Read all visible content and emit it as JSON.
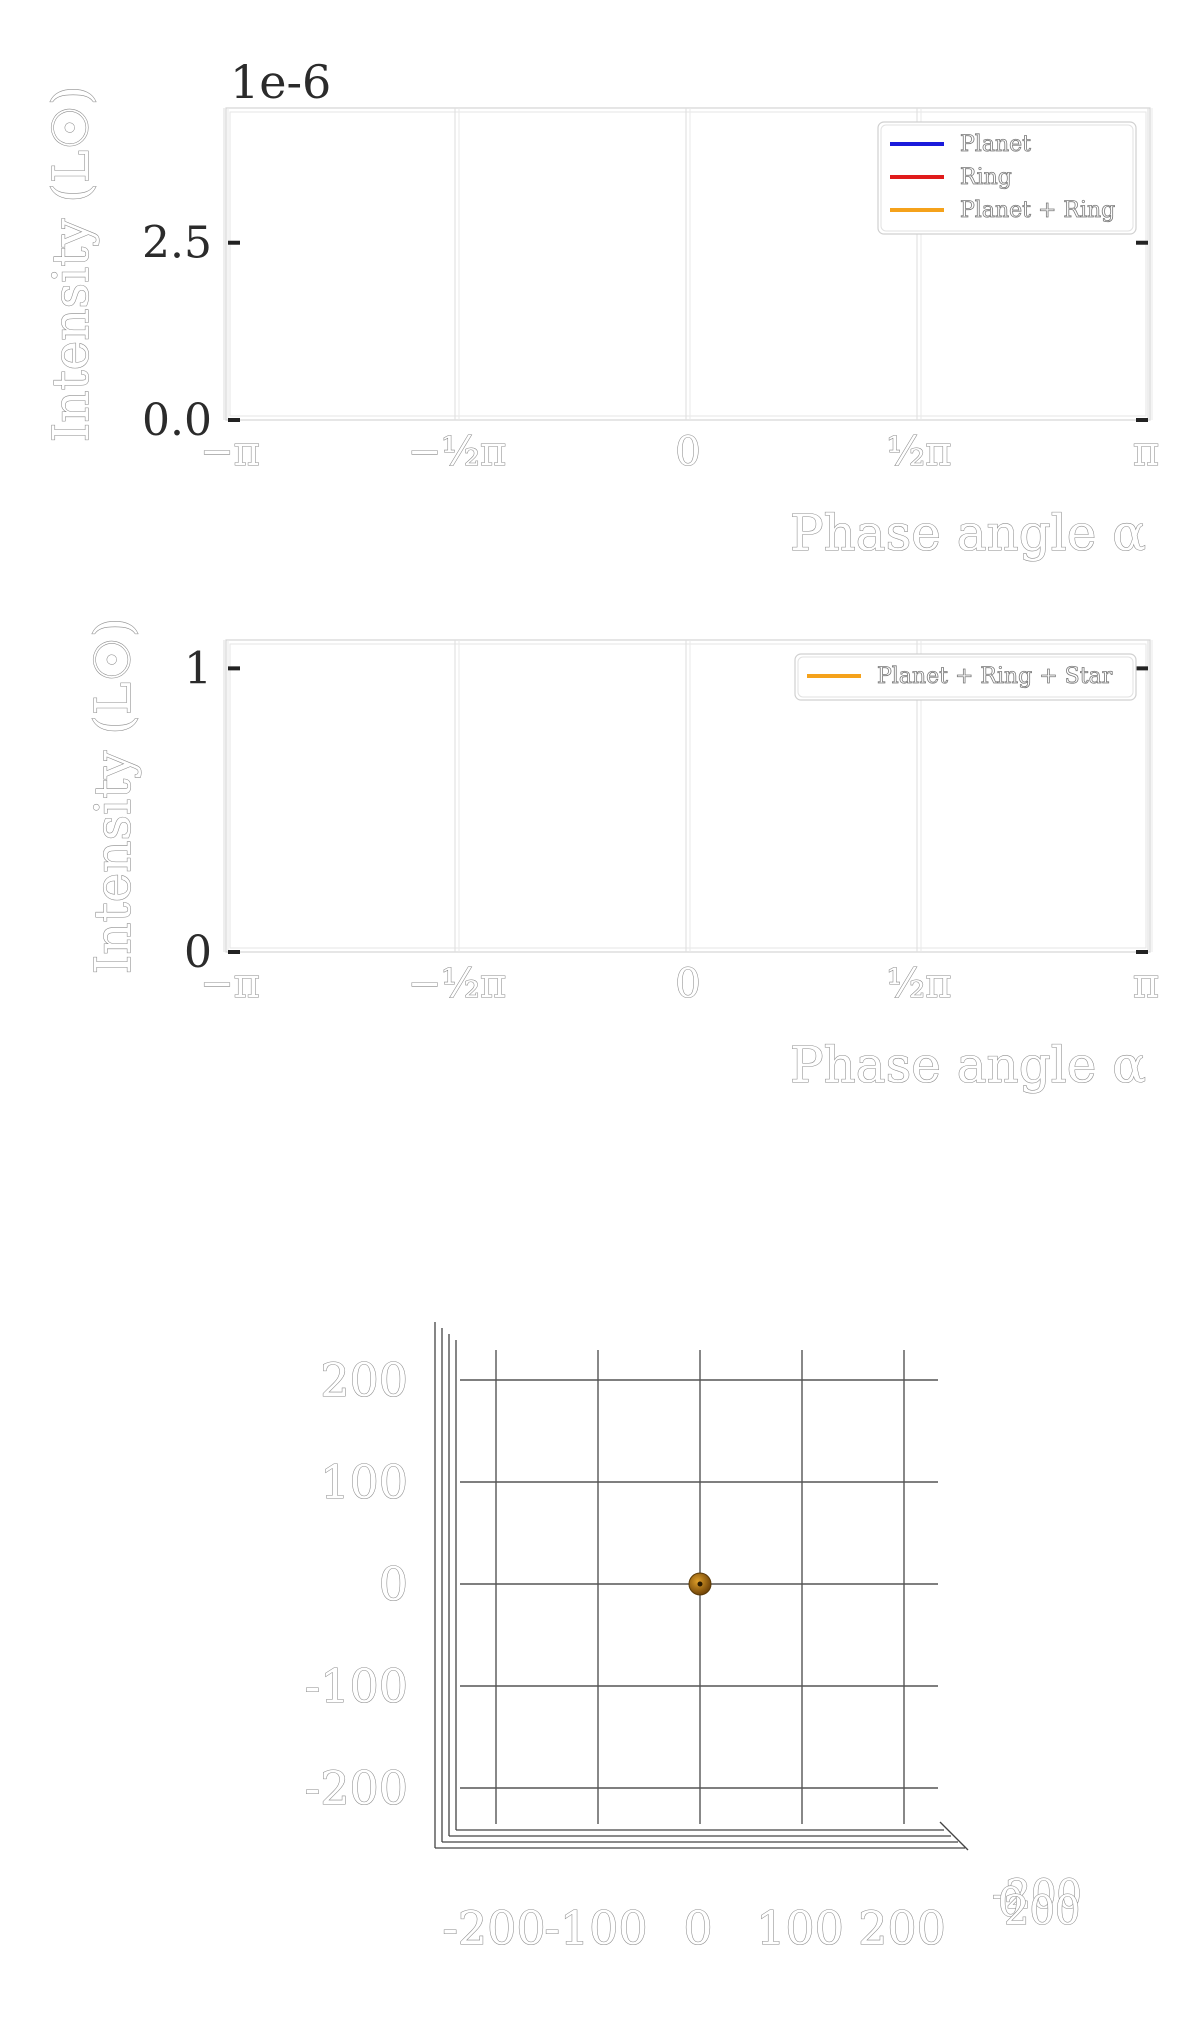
{
  "chart_data": [
    {
      "type": "line",
      "multiplier": "1e-6",
      "ylabel": "Intensity (L☉)",
      "xlabel": "Phase angle α",
      "xlim": [
        -3.14159,
        3.14159
      ],
      "ylim": [
        0,
        4.4
      ],
      "x_ticks": [
        -3.14159,
        -1.5708,
        0,
        1.5708,
        3.14159
      ],
      "x_tick_labels": [
        "−π",
        "−½π",
        "0",
        "½π",
        "π"
      ],
      "y_ticks": [
        0,
        2.5
      ],
      "y_tick_labels": [
        "0.0",
        "2.5"
      ],
      "grid": true,
      "legend_position": "top-right",
      "series": [
        {
          "name": "Planet",
          "color": "#1a1adb",
          "x": [],
          "y": []
        },
        {
          "name": "Ring",
          "color": "#e01b1b",
          "x": [],
          "y": []
        },
        {
          "name": "Planet + Ring",
          "color": "#f5a21b",
          "x": [],
          "y": []
        }
      ]
    },
    {
      "type": "line",
      "ylabel": "Intensity (L☉)",
      "xlabel": "Phase angle α",
      "xlim": [
        -3.14159,
        3.14159
      ],
      "ylim": [
        0,
        1.1
      ],
      "x_ticks": [
        -3.14159,
        -1.5708,
        0,
        1.5708,
        3.14159
      ],
      "x_tick_labels": [
        "−π",
        "−½π",
        "0",
        "½π",
        "π"
      ],
      "y_ticks": [
        0,
        1
      ],
      "y_tick_labels": [
        "0",
        "1"
      ],
      "grid": true,
      "legend_position": "top-right",
      "series": [
        {
          "name": "Planet + Ring + Star",
          "color": "#f5a21b",
          "x": [],
          "y": []
        }
      ]
    },
    {
      "type": "scatter",
      "projection": "3d",
      "xlim": [
        -250,
        250
      ],
      "ylim": [
        -250,
        250
      ],
      "x_tick_labels": [
        "-200",
        "-100",
        "0",
        "100",
        "200"
      ],
      "y_tick_labels": [
        "200",
        "100",
        "0",
        "-100",
        "-200"
      ],
      "z_tick_labels": [
        "-200",
        "0",
        "200"
      ],
      "grid": true,
      "points": [
        {
          "x": 0,
          "y": 0,
          "z": 0,
          "label": "planet",
          "color": "#b5760f"
        }
      ]
    }
  ]
}
